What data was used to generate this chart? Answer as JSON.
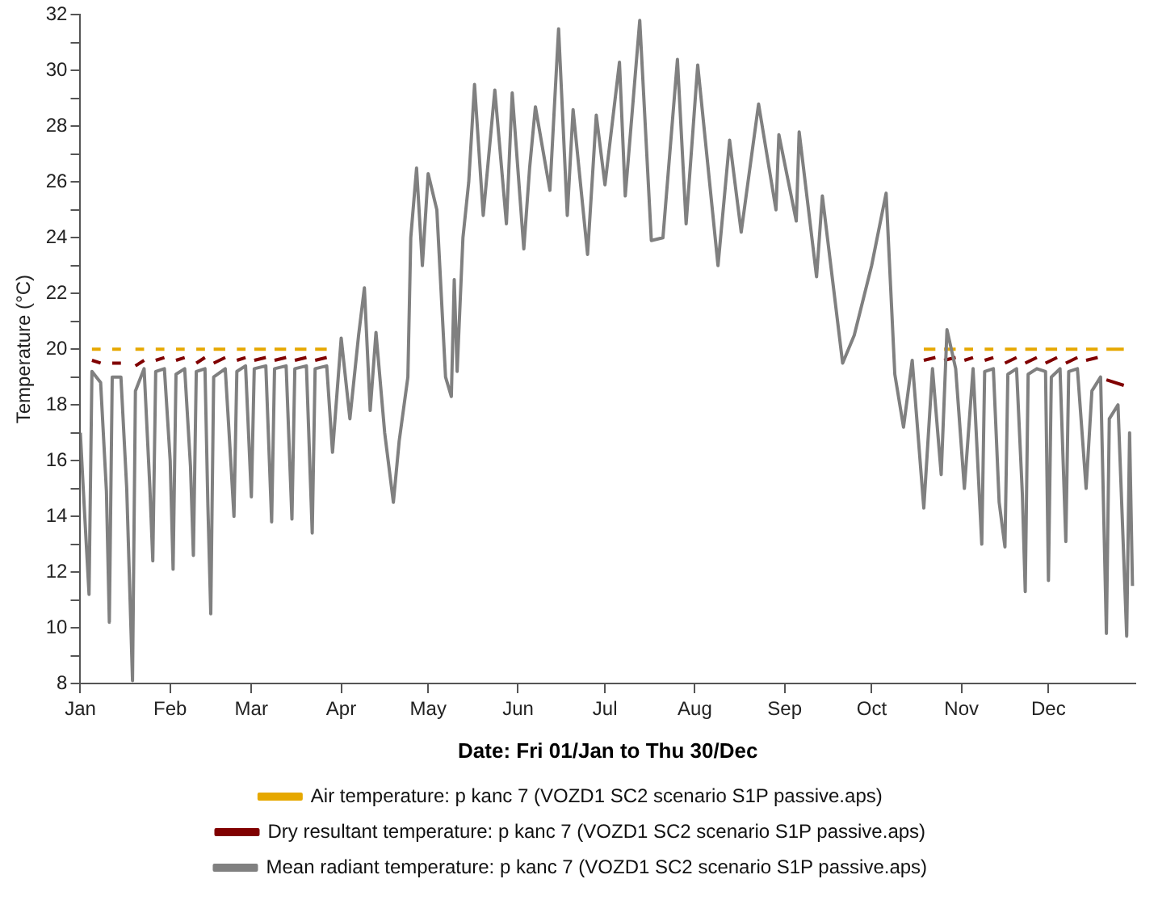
{
  "chart_data": {
    "type": "line",
    "xlabel": "Date: Fri 01/Jan to Thu 30/Dec",
    "ylabel": "Temperature (°C)",
    "xlim": [
      "--01-01",
      "--12-31"
    ],
    "xticks": [
      {
        "value": "--01-01",
        "label": "Jan"
      },
      {
        "value": "--02-01",
        "label": "Feb"
      },
      {
        "value": "--03-01",
        "label": "Mar"
      },
      {
        "value": "--04-01",
        "label": "Apr"
      },
      {
        "value": "--05-01",
        "label": "May"
      },
      {
        "value": "--06-01",
        "label": "Jun"
      },
      {
        "value": "--07-01",
        "label": "Jul"
      },
      {
        "value": "--08-01",
        "label": "Aug"
      },
      {
        "value": "--09-01",
        "label": "Sep"
      },
      {
        "value": "--10-01",
        "label": "Oct"
      },
      {
        "value": "--11-01",
        "label": "Nov"
      },
      {
        "value": "--12-01",
        "label": "Dec"
      }
    ],
    "ylim": [
      8,
      32
    ],
    "yticks": [
      8,
      {
        "value": 9,
        "label": null
      },
      10,
      {
        "value": 11,
        "label": null
      },
      12,
      {
        "value": 13,
        "label": null
      },
      14,
      {
        "value": 15,
        "label": null
      },
      16,
      {
        "value": 17,
        "label": null
      },
      18,
      {
        "value": 19,
        "label": null
      },
      20,
      {
        "value": 21,
        "label": null
      },
      22,
      {
        "value": 23,
        "label": null
      },
      24,
      {
        "value": 25,
        "label": null
      },
      26,
      {
        "value": 27,
        "label": null
      },
      28,
      {
        "value": 29,
        "label": null
      },
      30,
      {
        "value": 31,
        "label": null
      },
      32
    ],
    "series": [
      {
        "name": "Air temperature: p kanc 7 (VOZD1 SC2 scenario S1P passive.aps)",
        "color": "#e6a800",
        "x": [
          "--01-05",
          "--01-08",
          "--01-10",
          "--01-12",
          "--01-15",
          "--01-17",
          "--01-20",
          "--01-23",
          "--01-25",
          "--01-27",
          "--01-30",
          "--02-01",
          "--02-03",
          "--02-06",
          "--02-08",
          "--02-10",
          "--02-13",
          "--02-14",
          "--02-16",
          "--02-20",
          "--02-22",
          "--02-24",
          "--02-27",
          "--03-01",
          "--03-02",
          "--03-06",
          "--03-08",
          "--03-09",
          "--03-13",
          "--03-15",
          "--03-16",
          "--03-20",
          "--03-22",
          "--03-23",
          "--03-27",
          "--04-15",
          "--10-19",
          "--10-23",
          "--10-25",
          "--10-26",
          "--10-30",
          "--11-01",
          "--11-02",
          "--11-05",
          "--11-07",
          "--11-09",
          "--11-12",
          "--11-14",
          "--11-16",
          "--11-20",
          "--11-22",
          "--11-23",
          "--11-27",
          "--11-29",
          "--11-30",
          "--12-04",
          "--12-06",
          "--12-07",
          "--12-11",
          "--12-13",
          "--12-14",
          "--12-18",
          "--12-20",
          "--12-21",
          "--12-27"
        ],
        "values": [
          20,
          20,
          null,
          20,
          20,
          null,
          20,
          20,
          null,
          20,
          20,
          null,
          20,
          20,
          null,
          20,
          20,
          null,
          20,
          20,
          null,
          20,
          20,
          null,
          20,
          20,
          null,
          20,
          20,
          null,
          20,
          20,
          null,
          20,
          20,
          null,
          20,
          20,
          null,
          20,
          20,
          null,
          20,
          20,
          null,
          20,
          20,
          null,
          20,
          20,
          null,
          20,
          20,
          null,
          20,
          20,
          null,
          20,
          20,
          null,
          20,
          20,
          null,
          20,
          20
        ]
      },
      {
        "name": "Dry resultant temperature: p kanc 7 (VOZD1 SC2 scenario S1P passive.aps)",
        "color": "#800000",
        "x": [
          "--01-05",
          "--01-08",
          "--01-10",
          "--01-12",
          "--01-15",
          "--01-17",
          "--01-20",
          "--01-23",
          "--01-25",
          "--01-27",
          "--01-30",
          "--02-01",
          "--02-03",
          "--02-06",
          "--02-08",
          "--02-10",
          "--02-13",
          "--02-14",
          "--02-16",
          "--02-20",
          "--02-22",
          "--02-24",
          "--02-27",
          "--03-01",
          "--03-02",
          "--03-06",
          "--03-08",
          "--03-09",
          "--03-13",
          "--03-15",
          "--03-16",
          "--03-20",
          "--03-22",
          "--03-23",
          "--03-27",
          "--04-15",
          "--10-19",
          "--10-23",
          "--10-25",
          "--10-26",
          "--10-30",
          "--11-01",
          "--11-02",
          "--11-05",
          "--11-07",
          "--11-09",
          "--11-12",
          "--11-14",
          "--11-16",
          "--11-20",
          "--11-22",
          "--11-23",
          "--11-27",
          "--11-29",
          "--11-30",
          "--12-04",
          "--12-06",
          "--12-07",
          "--12-11",
          "--12-13",
          "--12-14",
          "--12-18",
          "--12-20",
          "--12-21",
          "--12-27"
        ],
        "values": [
          19.6,
          19.5,
          null,
          19.5,
          19.5,
          null,
          19.4,
          19.6,
          null,
          19.6,
          19.7,
          null,
          19.6,
          19.7,
          null,
          19.5,
          19.7,
          null,
          19.5,
          19.7,
          null,
          19.6,
          19.7,
          null,
          19.6,
          19.7,
          null,
          19.6,
          19.7,
          null,
          19.6,
          19.7,
          null,
          19.6,
          19.7,
          null,
          19.6,
          19.7,
          null,
          19.6,
          19.7,
          null,
          19.6,
          19.7,
          null,
          19.6,
          19.7,
          null,
          19.5,
          19.7,
          null,
          19.5,
          19.7,
          null,
          19.5,
          19.7,
          null,
          19.5,
          19.7,
          null,
          19.6,
          19.7,
          null,
          18.9,
          18.7
        ]
      },
      {
        "name": "Mean radiant temperature: p kanc 7 (VOZD1 SC2 scenario S1P passive.aps)",
        "color": "#808080",
        "x": [
          "--01-01",
          "--01-02",
          "--01-04",
          "--01-05",
          "--01-08",
          "--01-10",
          "--01-11",
          "--01-12",
          "--01-15",
          "--01-17",
          "--01-19",
          "--01-20",
          "--01-23",
          "--01-25",
          "--01-26",
          "--01-27",
          "--01-30",
          "--02-01",
          "--02-02",
          "--02-03",
          "--02-06",
          "--02-08",
          "--02-09",
          "--02-10",
          "--02-13",
          "--02-14",
          "--02-15",
          "--02-16",
          "--02-20",
          "--02-22",
          "--02-23",
          "--02-24",
          "--02-27",
          "--03-01",
          "--03-02",
          "--03-06",
          "--03-08",
          "--03-09",
          "--03-13",
          "--03-15",
          "--03-16",
          "--03-20",
          "--03-22",
          "--03-23",
          "--03-27",
          "--03-29",
          "--04-01",
          "--04-04",
          "--04-07",
          "--04-09",
          "--04-11",
          "--04-13",
          "--04-16",
          "--04-19",
          "--04-21",
          "--04-24",
          "--04-25",
          "--04-27",
          "--04-29",
          "--05-01",
          "--05-04",
          "--05-07",
          "--05-09",
          "--05-10",
          "--05-11",
          "--05-13",
          "--05-15",
          "--05-17",
          "--05-20",
          "--05-24",
          "--05-28",
          "--05-30",
          "--06-03",
          "--06-05",
          "--06-07",
          "--06-12",
          "--06-15",
          "--06-18",
          "--06-20",
          "--06-25",
          "--06-28",
          "--07-01",
          "--07-06",
          "--07-08",
          "--07-13",
          "--07-17",
          "--07-21",
          "--07-26",
          "--07-29",
          "--08-02",
          "--08-09",
          "--08-13",
          "--08-17",
          "--08-23",
          "--08-29",
          "--08-30",
          "--09-05",
          "--09-06",
          "--09-12",
          "--09-14",
          "--09-21",
          "--09-25",
          "--10-01",
          "--10-06",
          "--10-09",
          "--10-12",
          "--10-15",
          "--10-19",
          "--10-22",
          "--10-25",
          "--10-27",
          "--10-30",
          "--11-02",
          "--11-05",
          "--11-08",
          "--11-09",
          "--11-12",
          "--11-14",
          "--11-16",
          "--11-17",
          "--11-20",
          "--11-22",
          "--11-23",
          "--11-24",
          "--11-27",
          "--11-30",
          "--12-01",
          "--12-02",
          "--12-05",
          "--12-07",
          "--12-08",
          "--12-11",
          "--12-14",
          "--12-16",
          "--12-19",
          "--12-21",
          "--12-22",
          "--12-25",
          "--12-28",
          "--12-29",
          "--12-30"
        ],
        "values": [
          17.0,
          15.0,
          11.2,
          19.2,
          18.8,
          14.9,
          10.2,
          19.0,
          19.0,
          15.0,
          8.1,
          18.5,
          19.3,
          15.0,
          12.4,
          19.2,
          19.3,
          16.0,
          12.1,
          19.1,
          19.3,
          15.8,
          12.6,
          19.2,
          19.3,
          14.4,
          10.5,
          19.0,
          19.3,
          15.8,
          14.0,
          19.2,
          19.4,
          14.7,
          19.3,
          19.4,
          13.8,
          19.3,
          19.4,
          13.9,
          19.3,
          19.4,
          13.4,
          19.3,
          19.4,
          16.3,
          20.4,
          17.5,
          20.5,
          22.2,
          17.8,
          20.6,
          17.0,
          14.5,
          16.7,
          19.0,
          24.0,
          26.5,
          23.0,
          26.3,
          25.0,
          19.0,
          18.3,
          22.5,
          19.2,
          24.0,
          26.0,
          29.5,
          24.8,
          29.3,
          24.5,
          29.2,
          23.6,
          26.5,
          28.7,
          25.7,
          31.5,
          24.8,
          28.6,
          23.4,
          28.4,
          25.9,
          30.3,
          25.5,
          31.8,
          23.9,
          24.0,
          30.4,
          24.5,
          30.2,
          23.0,
          27.5,
          24.2,
          28.8,
          25.0,
          27.7,
          24.6,
          27.8,
          22.6,
          25.5,
          19.5,
          20.5,
          23.0,
          25.6,
          19.1,
          17.2,
          19.6,
          14.3,
          19.3,
          15.5,
          20.7,
          19.3,
          15.0,
          19.3,
          13.0,
          19.2,
          19.3,
          14.5,
          12.9,
          19.1,
          19.3,
          14.8,
          11.3,
          19.1,
          19.3,
          19.2,
          11.7,
          19.0,
          19.3,
          13.1,
          19.2,
          19.3,
          15.0,
          18.5,
          19.0,
          9.8,
          17.5,
          18.0,
          9.7,
          17.0,
          11.5
        ]
      }
    ],
    "grid": false,
    "legend": "bottom",
    "line_style": "solid"
  }
}
